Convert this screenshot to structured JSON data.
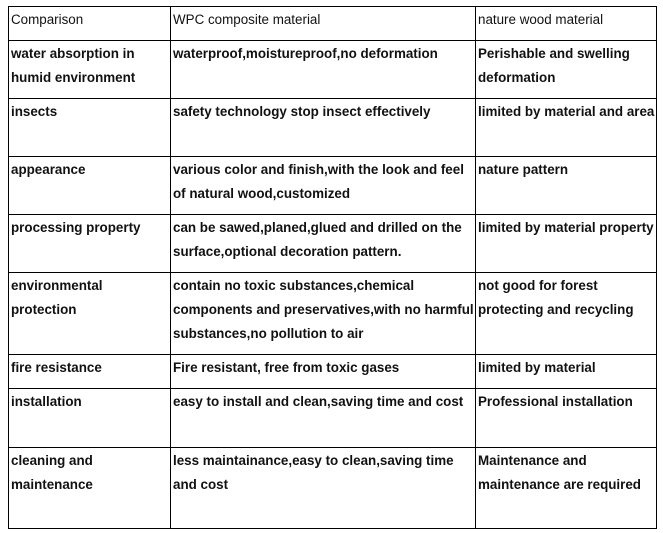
{
  "table": {
    "headers": [
      "Comparison",
      "WPC composite material",
      "nature wood material"
    ],
    "rows": [
      [
        "water absorption in humid environment",
        "waterproof,moistureproof,no deformation",
        "Perishable and swelling deformation"
      ],
      [
        "insects",
        "safety technology stop insect effectively",
        "limited by material and area"
      ],
      [
        "appearance",
        "various color and finish,with the look and feel of natural wood,customized",
        "nature pattern"
      ],
      [
        "processing property",
        "can be sawed,planed,glued and drilled on the surface,optional decoration pattern.",
        "limited by material property"
      ],
      [
        "environmental protection",
        "contain no toxic substances,chemical components and preservatives,with no harmful substances,no pollution to air",
        "not good for forest protecting and recycling"
      ],
      [
        "fire resistance",
        "Fire resistant, free from toxic gases",
        "limited by material"
      ],
      [
        "installation",
        "easy to install and clean,saving time and cost",
        "Professional installation"
      ],
      [
        "cleaning and maintenance",
        "less maintainance,easy to clean,saving time and cost",
        "Maintenance and maintenance are required"
      ]
    ]
  }
}
